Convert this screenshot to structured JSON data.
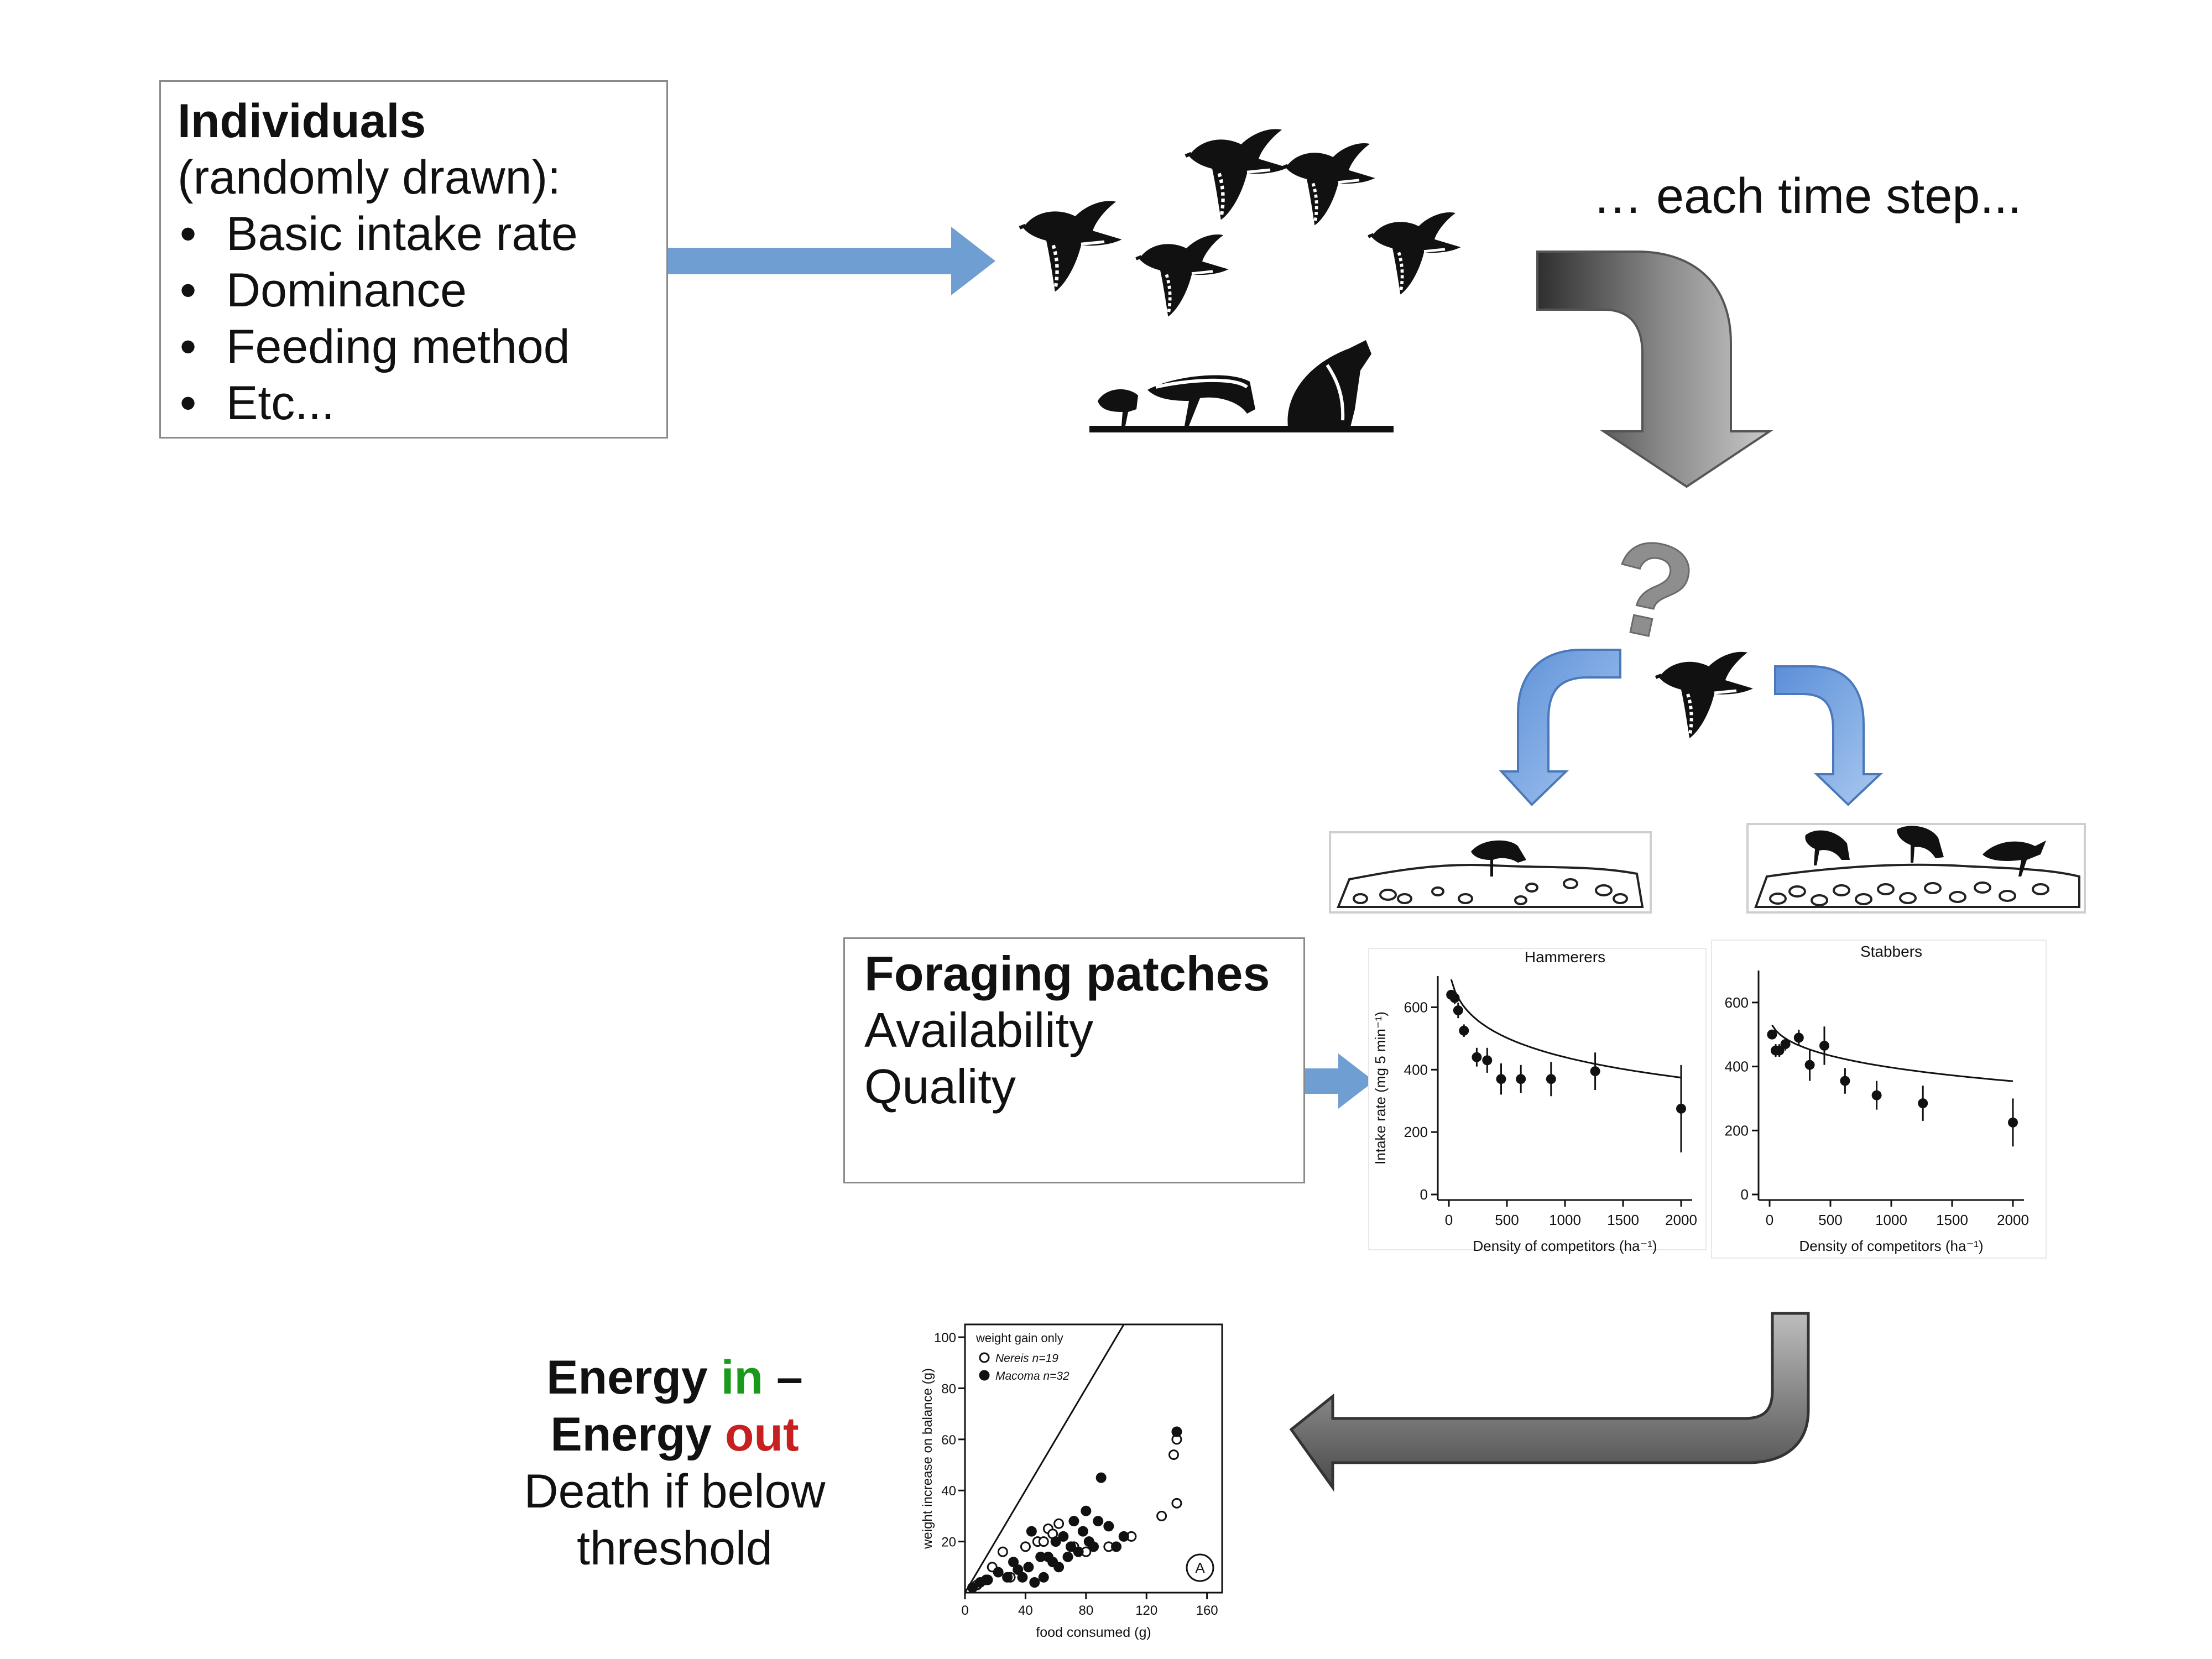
{
  "individuals": {
    "title": "Individuals",
    "subtitle": "(randomly drawn):",
    "items": [
      "Basic intake rate",
      "Dominance",
      "Feeding method",
      "Etc..."
    ]
  },
  "time_step_label": "… each time step...",
  "question_mark": "?",
  "foraging": {
    "title": "Foraging patches",
    "lines": [
      "Availability",
      "Quality"
    ]
  },
  "energy": {
    "word1": "Energy",
    "in": "in",
    "dash": "–",
    "word2": "Energy",
    "out": "out",
    "line3": "Death if below",
    "line4": "threshold"
  },
  "colors": {
    "arrow_blue": "#6f9ed2",
    "arrow_gray": "#6b6b6b",
    "in_green": "#1a9a1a",
    "out_red": "#c72020"
  },
  "chart_data": [
    {
      "type": "scatter",
      "title": "Hammerers",
      "xlabel": "Density of competitors (ha⁻¹)",
      "ylabel": "Intake rate (mg 5 min⁻¹)",
      "xlim": [
        0,
        2000
      ],
      "ylim": [
        0,
        700
      ],
      "xticks": [
        "0",
        "500",
        "1000",
        "1500",
        "2000"
      ],
      "yticks": [
        "0",
        "200",
        "400",
        "600"
      ],
      "x": [
        20,
        50,
        80,
        130,
        240,
        330,
        450,
        620,
        880,
        1260,
        2000
      ],
      "y": [
        640,
        630,
        590,
        525,
        440,
        430,
        370,
        370,
        370,
        395,
        275
      ],
      "err": [
        15,
        20,
        25,
        20,
        30,
        40,
        50,
        45,
        55,
        60,
        140
      ]
    },
    {
      "type": "scatter",
      "title": "Stabbers",
      "xlim": [
        0,
        2000
      ],
      "ylim": [
        0,
        700
      ],
      "xticks": [
        "0",
        "500",
        "1000",
        "1500",
        "2000"
      ],
      "yticks": [
        "0",
        "200",
        "400",
        "600"
      ],
      "xlabel": "Density of competitors (ha⁻¹)",
      "x": [
        20,
        50,
        80,
        130,
        240,
        330,
        450,
        620,
        880,
        1260,
        2000
      ],
      "y": [
        500,
        450,
        450,
        470,
        490,
        405,
        465,
        355,
        310,
        285,
        225
      ],
      "err": [
        15,
        20,
        20,
        20,
        25,
        50,
        60,
        40,
        45,
        55,
        75
      ]
    },
    {
      "type": "scatter",
      "xlabel": "food consumed (g)",
      "ylabel": "weight increase on balance (g)",
      "xlim": [
        0,
        170
      ],
      "ylim": [
        0,
        105
      ],
      "xticks": [
        "0",
        "40",
        "80",
        "120",
        "160"
      ],
      "yticks": [
        "20",
        "40",
        "60",
        "80",
        "100"
      ],
      "annotation": "weight gain only",
      "panel_label": "A",
      "series": [
        {
          "name": "Nereis n=19",
          "marker": "open",
          "points": [
            [
              8,
              3
            ],
            [
              18,
              10
            ],
            [
              25,
              16
            ],
            [
              30,
              6
            ],
            [
              40,
              18
            ],
            [
              48,
              20
            ],
            [
              52,
              20
            ],
            [
              55,
              25
            ],
            [
              58,
              23
            ],
            [
              62,
              27
            ],
            [
              72,
              18
            ],
            [
              80,
              16
            ],
            [
              95,
              18
            ],
            [
              110,
              22
            ],
            [
              130,
              30
            ],
            [
              140,
              35
            ],
            [
              138,
              54
            ],
            [
              140,
              60
            ],
            [
              14,
              5
            ]
          ]
        },
        {
          "name": "Macoma n=32",
          "marker": "filled",
          "points": [
            [
              5,
              2
            ],
            [
              10,
              4
            ],
            [
              15,
              5
            ],
            [
              22,
              8
            ],
            [
              28,
              6
            ],
            [
              32,
              12
            ],
            [
              35,
              9
            ],
            [
              38,
              6
            ],
            [
              42,
              10
            ],
            [
              44,
              24
            ],
            [
              46,
              4
            ],
            [
              50,
              14
            ],
            [
              52,
              6
            ],
            [
              55,
              14
            ],
            [
              58,
              12
            ],
            [
              60,
              20
            ],
            [
              62,
              10
            ],
            [
              65,
              22
            ],
            [
              68,
              14
            ],
            [
              70,
              18
            ],
            [
              72,
              28
            ],
            [
              75,
              16
            ],
            [
              78,
              24
            ],
            [
              80,
              32
            ],
            [
              82,
              20
            ],
            [
              85,
              18
            ],
            [
              88,
              28
            ],
            [
              90,
              45
            ],
            [
              95,
              26
            ],
            [
              100,
              18
            ],
            [
              105,
              22
            ],
            [
              140,
              63
            ]
          ]
        }
      ]
    }
  ]
}
